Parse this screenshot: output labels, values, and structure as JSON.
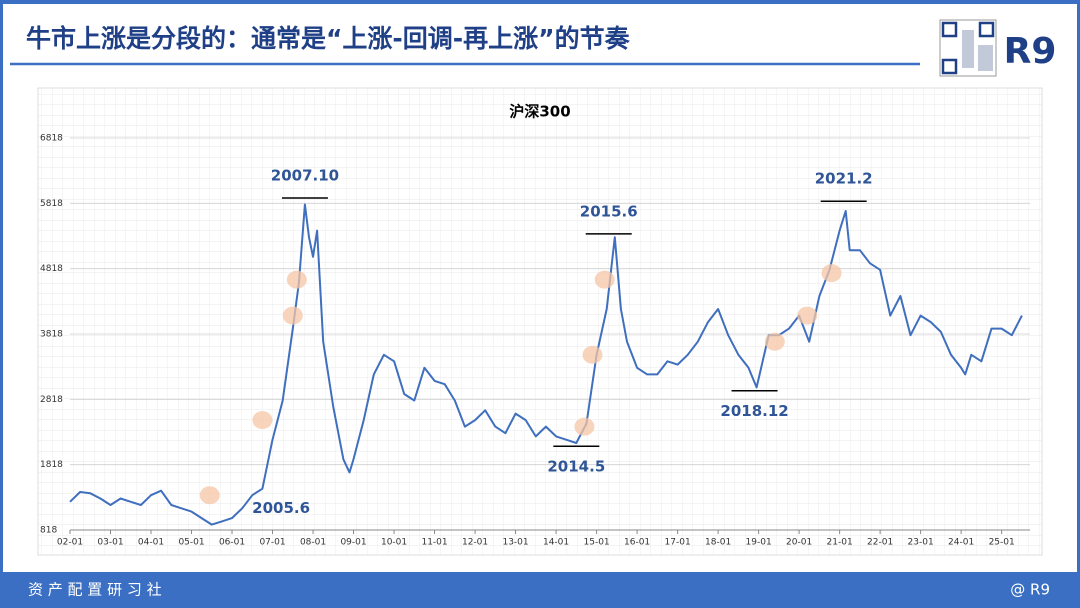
{
  "header": {
    "title": "牛市上涨是分段的：通常是“上涨-回调-再上涨”的节奏",
    "logo": "R9"
  },
  "footer": {
    "left": "资 产 配 置 研 习 社",
    "right": "@ R9"
  },
  "chart_data": {
    "type": "line",
    "title": "沪深300",
    "x": [
      2.0,
      2.25,
      2.5,
      2.75,
      3.0,
      3.25,
      3.5,
      3.75,
      4.0,
      4.25,
      4.5,
      4.75,
      5.0,
      5.25,
      5.5,
      5.75,
      6.0,
      6.25,
      6.5,
      6.75,
      7.0,
      7.25,
      7.5,
      7.65,
      7.8,
      7.9,
      8.0,
      8.1,
      8.25,
      8.5,
      8.75,
      8.9,
      9.0,
      9.25,
      9.5,
      9.75,
      10.0,
      10.25,
      10.5,
      10.75,
      11.0,
      11.25,
      11.5,
      11.75,
      12.0,
      12.25,
      12.5,
      12.75,
      13.0,
      13.25,
      13.5,
      13.75,
      14.0,
      14.25,
      14.5,
      14.75,
      15.0,
      15.25,
      15.45,
      15.6,
      15.75,
      16.0,
      16.25,
      16.5,
      16.75,
      17.0,
      17.25,
      17.5,
      17.75,
      18.0,
      18.25,
      18.5,
      18.75,
      18.95,
      19.25,
      19.5,
      19.75,
      20.0,
      20.25,
      20.5,
      20.75,
      21.0,
      21.15,
      21.25,
      21.5,
      21.75,
      22.0,
      22.25,
      22.5,
      22.75,
      23.0,
      23.25,
      23.5,
      23.75,
      24.0,
      24.1,
      24.25,
      24.5,
      24.75,
      25.0,
      25.25,
      25.5
    ],
    "series": [
      {
        "name": "沪深300",
        "color": "#3f6fbe",
        "values": [
          1250,
          1400,
          1380,
          1300,
          1200,
          1300,
          1250,
          1200,
          1350,
          1420,
          1200,
          1150,
          1100,
          1000,
          900,
          950,
          1000,
          1150,
          1350,
          1450,
          2200,
          2800,
          3900,
          4600,
          5800,
          5300,
          5000,
          5400,
          3700,
          2700,
          1900,
          1700,
          1900,
          2500,
          3200,
          3500,
          3400,
          2900,
          2800,
          3300,
          3100,
          3050,
          2800,
          2400,
          2500,
          2650,
          2400,
          2300,
          2600,
          2500,
          2250,
          2400,
          2250,
          2200,
          2150,
          2450,
          3500,
          4200,
          5300,
          4200,
          3700,
          3300,
          3200,
          3200,
          3400,
          3350,
          3500,
          3700,
          4000,
          4200,
          3800,
          3500,
          3300,
          3000,
          3800,
          3800,
          3900,
          4100,
          3700,
          4400,
          4800,
          5400,
          5700,
          5100,
          5100,
          4900,
          4800,
          4100,
          4400,
          3800,
          4100,
          4000,
          3850,
          3500,
          3300,
          3200,
          3500,
          3400,
          3900,
          3900,
          3800,
          4100
        ]
      }
    ],
    "xlim": [
      2,
      25.7
    ],
    "xticks": [
      {
        "value": 2,
        "label": "02-01"
      },
      {
        "value": 3,
        "label": "03-01"
      },
      {
        "value": 4,
        "label": "04-01"
      },
      {
        "value": 5,
        "label": "05-01"
      },
      {
        "value": 6,
        "label": "06-01"
      },
      {
        "value": 7,
        "label": "07-01"
      },
      {
        "value": 8,
        "label": "08-01"
      },
      {
        "value": 9,
        "label": "09-01"
      },
      {
        "value": 10,
        "label": "10-01"
      },
      {
        "value": 11,
        "label": "11-01"
      },
      {
        "value": 12,
        "label": "12-01"
      },
      {
        "value": 13,
        "label": "13-01"
      },
      {
        "value": 14,
        "label": "14-01"
      },
      {
        "value": 15,
        "label": "15-01"
      },
      {
        "value": 16,
        "label": "16-01"
      },
      {
        "value": 17,
        "label": "17-01"
      },
      {
        "value": 18,
        "label": "18-01"
      },
      {
        "value": 19,
        "label": "19-01"
      },
      {
        "value": 20,
        "label": "20-01"
      },
      {
        "value": 21,
        "label": "21-01"
      },
      {
        "value": 22,
        "label": "22-01"
      },
      {
        "value": 23,
        "label": "23-01"
      },
      {
        "value": 24,
        "label": "24-01"
      },
      {
        "value": 25,
        "label": "25-01"
      }
    ],
    "ylim": [
      818,
      6818
    ],
    "yticks": [
      818,
      1818,
      2818,
      3818,
      4818,
      5818,
      6818
    ],
    "grid": true,
    "annotations": [
      {
        "text": "2007.10",
        "x": 7.8,
        "y": 5900,
        "position": "above"
      },
      {
        "text": "2015.6",
        "x": 15.3,
        "y": 5350,
        "position": "above"
      },
      {
        "text": "2021.2",
        "x": 21.1,
        "y": 5850,
        "position": "above"
      },
      {
        "text": "2014.5",
        "x": 14.5,
        "y": 2100,
        "position": "below"
      },
      {
        "text": "2018.12",
        "x": 18.9,
        "y": 2950,
        "position": "below"
      },
      {
        "text": "2005.6",
        "x": 6.3,
        "y": 1150,
        "position": "right"
      }
    ],
    "highlights": {
      "color": "#f5c6a5",
      "x": [
        5.45,
        6.75,
        7.5,
        7.6,
        14.7,
        14.9,
        15.2,
        19.4,
        20.2,
        20.8
      ],
      "y": [
        1350,
        2500,
        4100,
        4650,
        2400,
        3500,
        4650,
        3700,
        4100,
        4750
      ]
    }
  }
}
